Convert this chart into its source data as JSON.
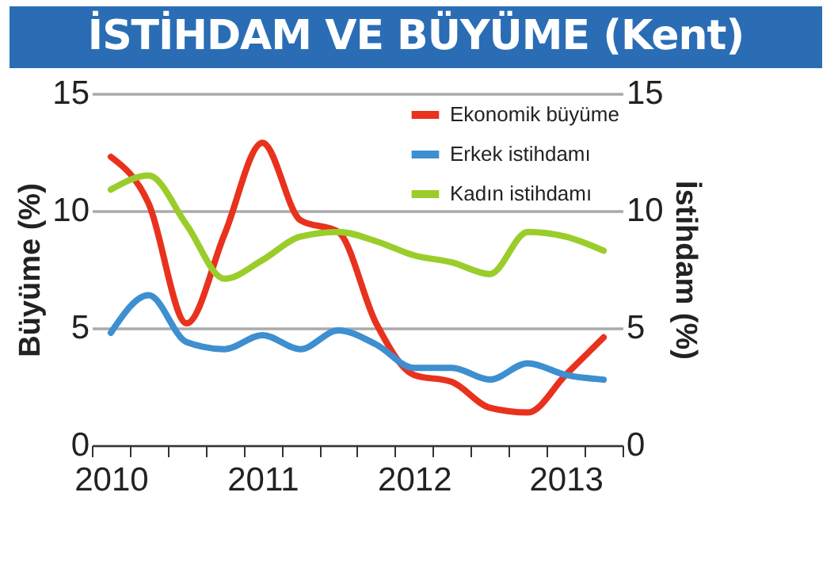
{
  "chart_data": {
    "type": "line",
    "title": "İSTİHDAM VE BÜYÜME (Kent)",
    "ylabel": "Büyüme (%)",
    "y2label": "İstihdam (%)",
    "categories": [
      "2010",
      null,
      null,
      null,
      "2011",
      null,
      null,
      null,
      "2012",
      null,
      null,
      null,
      "2013",
      null
    ],
    "series": [
      {
        "name": "Ekonomik büyüme",
        "color": "#e8321e",
        "values": [
          12.3,
          10.3,
          5.2,
          9.0,
          12.9,
          9.6,
          9.1,
          5.2,
          3.0,
          2.7,
          1.6,
          1.4,
          3.0,
          4.6
        ]
      },
      {
        "name": "Erkek istihdamı",
        "color": "#3d8fd0",
        "axis": "y2",
        "values": [
          4.8,
          6.4,
          4.4,
          4.1,
          4.7,
          4.1,
          4.9,
          4.3,
          3.3,
          3.3,
          2.8,
          3.5,
          3.0,
          2.8
        ]
      },
      {
        "name": "Kadın istihdamı",
        "color": "#9acd2a",
        "axis": "y2",
        "values": [
          10.9,
          11.5,
          9.4,
          7.1,
          7.9,
          8.9,
          9.1,
          8.7,
          8.1,
          7.8,
          7.3,
          9.1,
          8.9,
          8.3
        ]
      }
    ],
    "ylim": [
      0,
      15
    ],
    "yticks": [
      0,
      5,
      10,
      15
    ],
    "y2lim": [
      0,
      15
    ],
    "y2ticks": [
      0,
      5,
      10,
      15
    ],
    "grid": "y",
    "legend": "top right",
    "marker": "none",
    "line_style": "solid"
  }
}
